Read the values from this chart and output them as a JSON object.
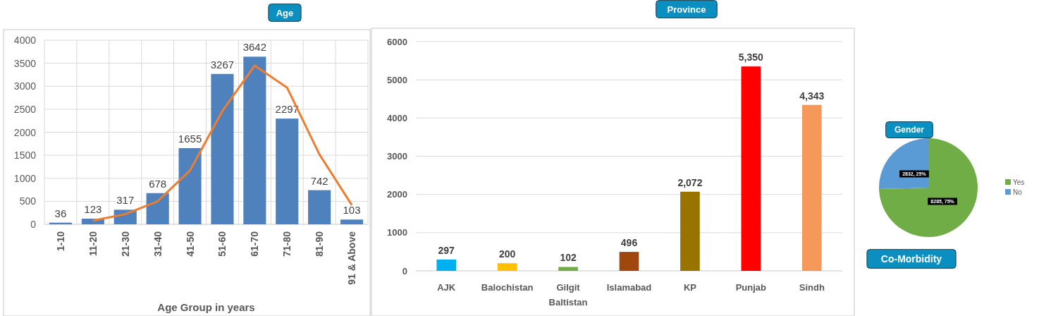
{
  "chart_data": [
    {
      "type": "bar",
      "title": "Age",
      "xlabel": "Age Group in years",
      "categories": [
        "1-10",
        "11-20",
        "21-30",
        "31-40",
        "41-50",
        "51-60",
        "61-70",
        "71-80",
        "81-90",
        "91 & Above"
      ],
      "series": [
        {
          "type": "bar",
          "color": "#4f81bd",
          "values": [
            36,
            123,
            317,
            678,
            1655,
            3267,
            3642,
            2297,
            742,
            103
          ],
          "value_labels": [
            "36",
            "123",
            "317",
            "678",
            "1655",
            "3267",
            "3642",
            "2297",
            "742",
            "103"
          ]
        },
        {
          "type": "line",
          "color": "#ed7d31",
          "values": [
            null,
            80,
            220,
            500,
            1170,
            2460,
            3450,
            2970,
            1520,
            420
          ]
        }
      ],
      "ylim": [
        0,
        4000
      ],
      "yticks": [
        0,
        500,
        1000,
        1500,
        2000,
        2500,
        3000,
        3500,
        4000
      ],
      "grid": true,
      "legend": false,
      "line_style": "solid",
      "marker": "none"
    },
    {
      "type": "bar",
      "title": "Province",
      "categories": [
        "AJK",
        "Balochistan",
        "Gilgit Baltistan",
        "Islamabad",
        "KP",
        "Punjab",
        "Sindh"
      ],
      "values": [
        297,
        200,
        102,
        496,
        2072,
        5350,
        4343
      ],
      "colors": [
        "#00b0f0",
        "#ffc000",
        "#70ad47",
        "#9e480e",
        "#997300",
        "#ff0000",
        "#f4995a"
      ],
      "value_labels": [
        "297",
        "200",
        "102",
        "496",
        "2,072",
        "5,350",
        "4,343"
      ],
      "ylim": [
        0,
        6000
      ],
      "yticks": [
        0,
        1000,
        2000,
        3000,
        4000,
        5000,
        6000
      ],
      "grid": "y",
      "legend": false
    },
    {
      "type": "pie",
      "title": "Gender",
      "categories": [
        "Yes",
        "No"
      ],
      "values": [
        8285,
        2832
      ],
      "colors": [
        "#70ad47",
        "#5b9bd5"
      ],
      "value_labels": [
        "8285, 75%",
        "2832, 25%"
      ],
      "legend": "right",
      "annotations": [
        "Co-Morbidity"
      ]
    }
  ]
}
